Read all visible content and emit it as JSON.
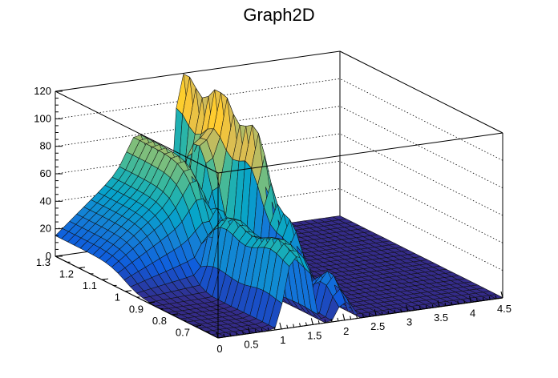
{
  "chart_data": {
    "type": "surface",
    "title": "Graph2D",
    "xlabel": "",
    "ylabel": "",
    "zlabel": "",
    "xlim": [
      0,
      4.5
    ],
    "ylim": [
      0.6,
      1.3
    ],
    "zlim": [
      0,
      120
    ],
    "x_ticks": [
      "0",
      "0.5",
      "1",
      "1.5",
      "2",
      "2.5",
      "3",
      "3.5",
      "4",
      "4.5"
    ],
    "y_ticks": [
      "0.7",
      "0.8",
      "0.9",
      "1",
      "1.1",
      "1.2",
      "1.3"
    ],
    "z_ticks": [
      "0",
      "20",
      "40",
      "60",
      "80",
      "100",
      "120"
    ],
    "palette": "kBird",
    "colors": [
      "#352a87",
      "#0f5cdd",
      "#1481d6",
      "#06a4ca",
      "#2eb7a4",
      "#87bf77",
      "#d1bb59",
      "#fec832",
      "#f9fb0e"
    ],
    "surface_features": [
      {
        "description_x": [
          0.0,
          1.6
        ],
        "y_range": [
          1.0,
          1.3
        ],
        "z_approx": [
          15,
          75
        ]
      },
      {
        "description_x": [
          1.0,
          1.5
        ],
        "y_range": [
          0.6,
          1.0
        ],
        "z_approx": [
          0,
          55
        ]
      },
      {
        "description_x": [
          1.9,
          2.2
        ],
        "y_range": [
          0.6,
          1.3
        ],
        "z_approx": [
          0,
          122
        ]
      },
      {
        "description_x": [
          2.2,
          4.5
        ],
        "y_range": [
          0.6,
          1.3
        ],
        "z_approx": [
          0,
          0
        ]
      }
    ]
  }
}
